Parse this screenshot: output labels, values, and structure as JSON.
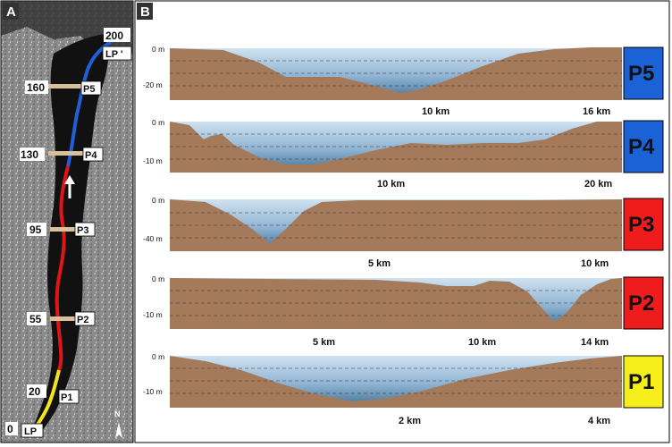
{
  "panels": {
    "a_letter": "A",
    "b_letter": "B"
  },
  "map": {
    "km_labels": [
      "200",
      "160",
      "130",
      "95",
      "55",
      "20",
      "0"
    ],
    "profile_labels": [
      "P5",
      "P4",
      "P3",
      "P2",
      "P1"
    ],
    "lp_top": "LP '",
    "lp_bottom": "LP",
    "compass": "N"
  },
  "profiles": [
    {
      "id": "P5",
      "badge": "P5",
      "badge_color": "#1a62d6",
      "depth_labels": [
        "0 m",
        "-20 m"
      ],
      "km_labels": [
        "10 km",
        "16 km"
      ]
    },
    {
      "id": "P4",
      "badge": "P4",
      "badge_color": "#1a62d6",
      "depth_labels": [
        "0 m",
        "-10 m"
      ],
      "km_labels": [
        "10 km",
        "20 km"
      ]
    },
    {
      "id": "P3",
      "badge": "P3",
      "badge_color": "#ee1c1c",
      "depth_labels": [
        "0 m",
        "-40 m"
      ],
      "km_labels": [
        "5 km",
        "10 km"
      ]
    },
    {
      "id": "P2",
      "badge": "P2",
      "badge_color": "#ee1c1c",
      "depth_labels": [
        "0 m",
        "-10 m"
      ],
      "km_labels": [
        "5 km",
        "10 km",
        "14 km"
      ]
    },
    {
      "id": "P1",
      "badge": "P1",
      "badge_color": "#f6ee1a",
      "depth_labels": [
        "0 m",
        "-10 m"
      ],
      "km_labels": [
        "2 km",
        "4 km"
      ]
    }
  ],
  "colors": {
    "terrain": "#a57a5a",
    "water": "#8fb3d2",
    "route_blue": "#1f5fd8",
    "route_red": "#e01616",
    "route_yellow": "#f1e51d",
    "profile_marker": "#d8c09a"
  }
}
